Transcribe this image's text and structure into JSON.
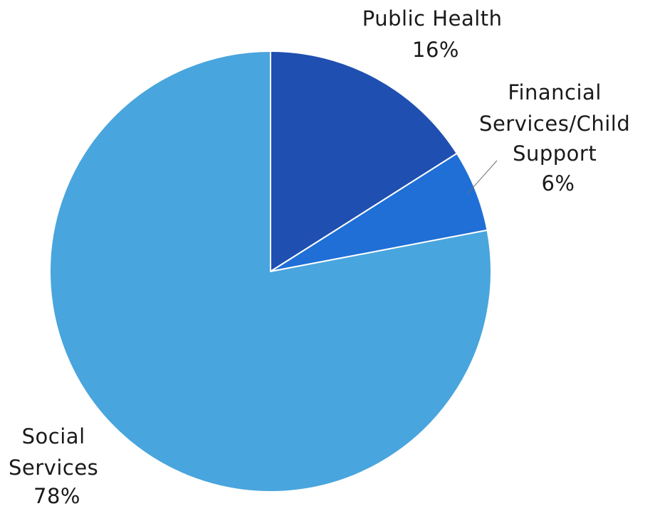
{
  "chart_data": {
    "type": "pie",
    "title": "",
    "slices": [
      {
        "name": "Public Health",
        "label_lines": [
          "Public Health",
          "16%"
        ],
        "value": 16,
        "color": "#1f4fb0"
      },
      {
        "name": "Financial Services/Child Support",
        "label_lines": [
          "Financial",
          "Services/Child",
          "Support",
          "6%"
        ],
        "value": 6,
        "color": "#1f6fd6"
      },
      {
        "name": "Social Services",
        "label_lines": [
          "Social",
          "Services",
          "78%"
        ],
        "value": 78,
        "color": "#49a5dd"
      }
    ],
    "start_angle_deg": 0,
    "direction": "clockwise",
    "legend": "none",
    "slice_border_color": "#ffffff"
  }
}
